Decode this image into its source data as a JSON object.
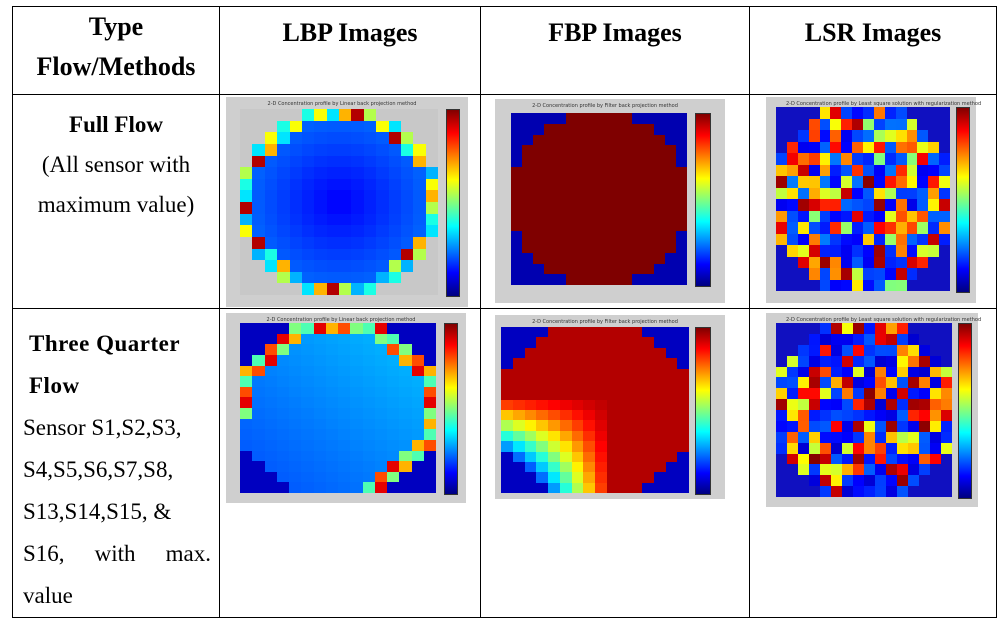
{
  "header": {
    "col1_line1": "Type",
    "col1_line2": "Flow/Methods",
    "col2": "LBP Images",
    "col3": "FBP Images",
    "col4": "LSR Images"
  },
  "rows": [
    {
      "title": "Full Flow",
      "desc_line1": "(All sensor with",
      "desc_line2": "maximum value)"
    },
    {
      "title_line1": "Three Quarter",
      "title_line2": "Flow",
      "desc_lines": [
        "Sensor S1,S2,S3,",
        "S4,S5,S6,S7,S8,",
        "S13,S14,S15, &",
        "S16, with max.",
        "value"
      ]
    }
  ],
  "figures": {
    "lbp_full_title": "2-D Concentration profile by Linear back projection method",
    "fbp_full_title": "2-D Concentration profile by Filter back projection method",
    "lsr_full_title": "2-D Concentration profile by Least square solution with regularization method",
    "lbp_tq_title": "2-D Concentration profile by Linear back projection method",
    "fbp_tq_title": "2-D Concentration profile by Filter back projection method",
    "lsr_tq_title": "2-D Concentration profile by Least square solution with regularization method"
  },
  "colors": {
    "jet": [
      "#00008f",
      "#0000ff",
      "#0060ff",
      "#00c0ff",
      "#40ffc0",
      "#c0ff40",
      "#ffc000",
      "#ff4000",
      "#c00000",
      "#800000"
    ]
  }
}
